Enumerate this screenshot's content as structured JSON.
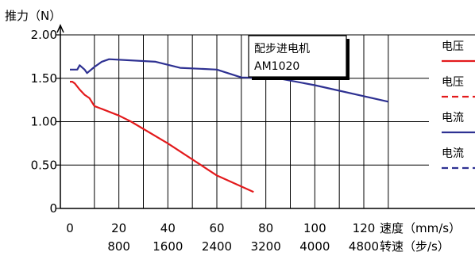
{
  "chart_data": {
    "type": "line",
    "title": "",
    "ylabel": "推力（N）",
    "xlabel": "速度（mm/s）",
    "xlabel_secondary": "转速（步/s）",
    "xlim": [
      0,
      130
    ],
    "ylim": [
      0,
      2.0
    ],
    "x_ticks": [
      0,
      20,
      40,
      60,
      80,
      100,
      120
    ],
    "x_tick_labels": [
      "0",
      "20",
      "40",
      "60",
      "80",
      "100",
      "120"
    ],
    "x_secondary_ticks": [
      20,
      40,
      60,
      80,
      100,
      120
    ],
    "x_secondary_tick_labels": [
      "800",
      "1600",
      "2400",
      "3200",
      "4000",
      "4800"
    ],
    "y_ticks": [
      0,
      0.5,
      1.0,
      1.5,
      2.0
    ],
    "y_tick_labels": [
      "0",
      "0.50",
      "1.00",
      "1.50",
      "2.00"
    ],
    "grid": true,
    "legend_position": "right",
    "annotation": {
      "lines": [
        "配步进电机",
        "AM1020"
      ]
    },
    "series": [
      {
        "name": "电压",
        "color": "#e31a1c",
        "style": "solid",
        "points": [
          [
            0,
            1.46
          ],
          [
            1,
            1.46
          ],
          [
            2,
            1.44
          ],
          [
            4,
            1.37
          ],
          [
            6,
            1.31
          ],
          [
            8,
            1.27
          ],
          [
            10,
            1.18
          ],
          [
            20,
            1.07
          ],
          [
            25,
            1.0
          ],
          [
            40,
            0.75
          ],
          [
            60,
            0.38
          ],
          [
            75,
            0.19
          ]
        ]
      },
      {
        "name": "电压",
        "color": "#e31a1c",
        "style": "dashed",
        "points": []
      },
      {
        "name": "电流",
        "color": "#2e3192",
        "style": "solid",
        "points": [
          [
            0,
            1.6
          ],
          [
            2,
            1.6
          ],
          [
            3,
            1.6
          ],
          [
            4,
            1.65
          ],
          [
            6,
            1.6
          ],
          [
            7,
            1.56
          ],
          [
            10,
            1.63
          ],
          [
            13,
            1.69
          ],
          [
            16,
            1.72
          ],
          [
            35,
            1.69
          ],
          [
            45,
            1.62
          ],
          [
            60,
            1.6
          ],
          [
            70,
            1.51
          ],
          [
            85,
            1.5
          ],
          [
            100,
            1.42
          ],
          [
            130,
            1.23
          ]
        ]
      },
      {
        "name": "电流",
        "color": "#2e3192",
        "style": "dashed",
        "points": []
      }
    ]
  }
}
